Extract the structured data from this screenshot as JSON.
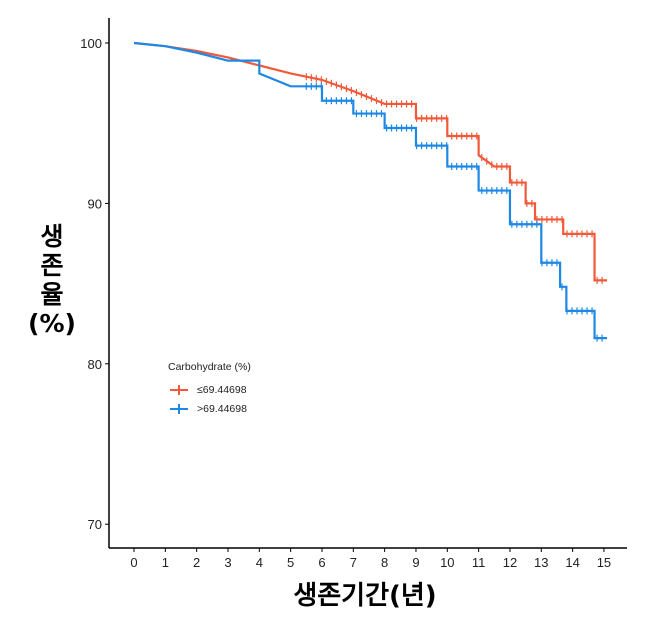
{
  "chart_data": {
    "type": "line",
    "subtype": "kaplan-meier survival curve (step)",
    "title": "",
    "xlabel": "생존기간(년)",
    "ylabel": "생존율 (%)",
    "ylabel_lines": [
      "생",
      "존",
      "율",
      "(%)"
    ],
    "xlim": [
      -0.3,
      15.7
    ],
    "ylim": [
      68.5,
      101.5
    ],
    "x_ticks": [
      0,
      1,
      2,
      3,
      4,
      5,
      6,
      7,
      8,
      9,
      10,
      11,
      12,
      13,
      14,
      15
    ],
    "y_ticks": [
      70,
      80,
      90,
      100
    ],
    "grid": false,
    "legend": {
      "title": "Carbohydrate (%)",
      "position": "inside-bottom-left",
      "entries": [
        "≤69.44698",
        ">69.44698"
      ]
    },
    "series": [
      {
        "name": "≤69.44698",
        "color": "#F05A3A",
        "x": [
          0,
          1,
          2,
          3,
          4,
          5,
          6,
          7,
          8,
          9,
          10,
          11,
          11.5,
          12,
          12.5,
          12.8,
          13.7,
          14.7,
          15.1
        ],
        "values": [
          100,
          99.8,
          99.5,
          99.1,
          98.6,
          98.1,
          97.7,
          97.0,
          96.2,
          95.3,
          94.2,
          93.0,
          92.3,
          91.3,
          90.0,
          89.0,
          88.1,
          85.2,
          85.2
        ]
      },
      {
        "name": ">69.44698",
        "color": "#1E88E5",
        "x": [
          0,
          1,
          2,
          3,
          4,
          5,
          6,
          7,
          8,
          9,
          10,
          11,
          12,
          13,
          13.6,
          13.8,
          14.5,
          14.7,
          15.1
        ],
        "values": [
          100,
          99.8,
          99.4,
          98.9,
          98.1,
          97.3,
          96.4,
          95.6,
          94.7,
          93.6,
          92.3,
          90.8,
          88.7,
          86.3,
          84.8,
          83.3,
          83.3,
          81.6,
          81.6
        ]
      }
    ]
  }
}
